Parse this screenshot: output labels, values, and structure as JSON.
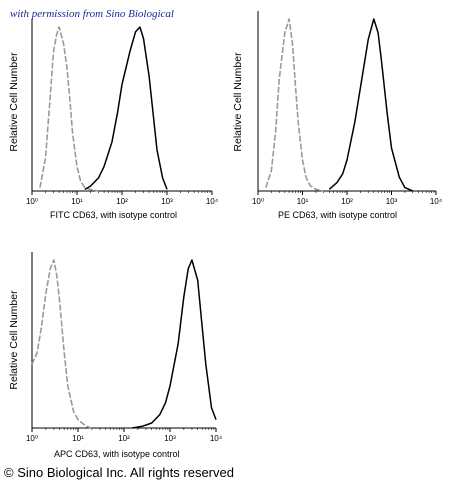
{
  "watermark": "with permission from Sino Biological",
  "copyright": "© Sino Biological Inc. All rights reserved",
  "chart_data": [
    {
      "type": "area",
      "xlabel": "FITC  CD63,  with isotype control",
      "ylabel": "Relative Cell Number",
      "xscale": "log",
      "xlim": [
        1,
        10000
      ],
      "x_ticks": [
        "10⁰",
        "10¹",
        "10²",
        "10³",
        "10⁴"
      ],
      "series": [
        {
          "role": "isotype control",
          "style": "gray dashed",
          "x": [
            1.5,
            2,
            2.5,
            3,
            3.5,
            4,
            5,
            6,
            7,
            8,
            10,
            12,
            15,
            20,
            30
          ],
          "y": [
            0.02,
            0.2,
            0.55,
            0.85,
            0.95,
            1.0,
            0.9,
            0.75,
            0.55,
            0.35,
            0.15,
            0.06,
            0.02,
            0.01,
            0
          ]
        },
        {
          "role": "CD63",
          "style": "black solid",
          "x": [
            15,
            20,
            30,
            40,
            60,
            80,
            100,
            150,
            200,
            250,
            300,
            400,
            500,
            600,
            800,
            1000
          ],
          "y": [
            0.01,
            0.03,
            0.08,
            0.15,
            0.3,
            0.48,
            0.65,
            0.85,
            0.97,
            1.0,
            0.93,
            0.7,
            0.45,
            0.25,
            0.08,
            0.01
          ]
        }
      ]
    },
    {
      "type": "area",
      "xlabel": "PE  CD63,  with isotype control",
      "ylabel": "Relative Cell Number",
      "xscale": "log",
      "xlim": [
        1,
        10000
      ],
      "x_ticks": [
        "10⁰",
        "10¹",
        "10²",
        "10³",
        "10⁴"
      ],
      "series": [
        {
          "role": "isotype control",
          "style": "gray dashed",
          "x": [
            1.5,
            2,
            2.5,
            3,
            4,
            5,
            6,
            7,
            8,
            10,
            12,
            15,
            20,
            30
          ],
          "y": [
            0.02,
            0.12,
            0.35,
            0.65,
            0.92,
            1.0,
            0.85,
            0.6,
            0.4,
            0.18,
            0.08,
            0.03,
            0.01,
            0
          ]
        },
        {
          "role": "CD63",
          "style": "black solid",
          "x": [
            40,
            60,
            80,
            100,
            150,
            200,
            300,
            400,
            500,
            600,
            800,
            1000,
            1500,
            2000,
            3000
          ],
          "y": [
            0.01,
            0.05,
            0.1,
            0.18,
            0.4,
            0.6,
            0.88,
            1.0,
            0.92,
            0.75,
            0.45,
            0.25,
            0.08,
            0.02,
            0
          ]
        }
      ]
    },
    {
      "type": "area",
      "xlabel": "APC CD63, with isotype control",
      "ylabel": "Relative Cell Number",
      "xscale": "log",
      "xlim": [
        1,
        10000
      ],
      "x_ticks": [
        "10⁰",
        "10¹",
        "10²",
        "10³",
        "10⁴"
      ],
      "series": [
        {
          "role": "isotype control",
          "style": "gray dashed",
          "x": [
            1,
            1.3,
            1.6,
            2,
            2.5,
            3,
            3.5,
            4,
            5,
            6,
            8,
            10,
            15,
            20
          ],
          "y": [
            0.38,
            0.45,
            0.6,
            0.8,
            0.95,
            1.0,
            0.9,
            0.75,
            0.45,
            0.25,
            0.1,
            0.05,
            0.01,
            0
          ]
        },
        {
          "role": "CD63",
          "style": "black solid",
          "x": [
            150,
            250,
            400,
            600,
            800,
            1000,
            1500,
            2000,
            2500,
            3000,
            4000,
            5000,
            6000,
            8000,
            10000
          ],
          "y": [
            0,
            0.01,
            0.03,
            0.08,
            0.15,
            0.25,
            0.5,
            0.78,
            0.95,
            1.0,
            0.88,
            0.6,
            0.38,
            0.12,
            0.05
          ]
        }
      ]
    }
  ]
}
